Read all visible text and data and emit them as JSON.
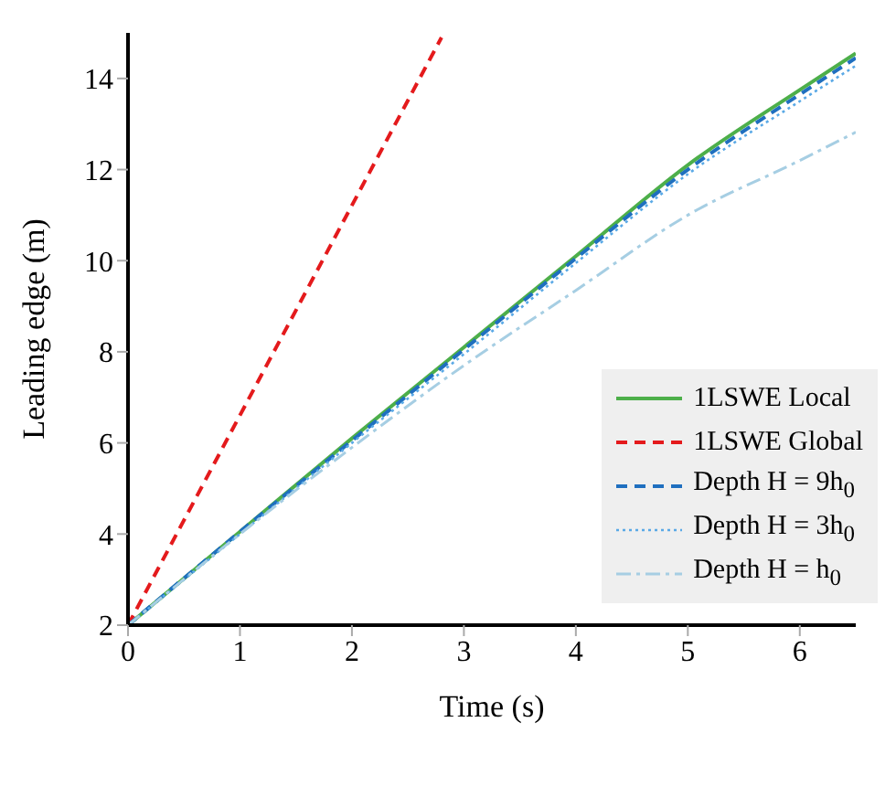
{
  "chart_data": {
    "type": "line",
    "xlabel": "Time (s)",
    "ylabel": "Leading edge (m)",
    "xlim": [
      0,
      6.5
    ],
    "ylim": [
      2,
      15
    ],
    "xticks": [
      0,
      1,
      2,
      3,
      4,
      5,
      6
    ],
    "yticks": [
      2,
      4,
      6,
      8,
      10,
      12,
      14
    ],
    "grid": false,
    "legend": "bottom right",
    "marker": "none",
    "series": [
      {
        "name": "1LSWE Local",
        "color": "#4daf4a",
        "line_style": "solid",
        "x": [
          0,
          1,
          2,
          3,
          4,
          5,
          6,
          6.5
        ],
        "values": [
          2,
          4.05,
          6.1,
          8.1,
          10.1,
          12.1,
          13.75,
          14.55
        ]
      },
      {
        "name": "1LSWE Global",
        "color": "#e41a1c",
        "line_style": "dashed",
        "x": [
          0,
          2.8
        ],
        "values": [
          2,
          14.9
        ]
      },
      {
        "name": "Depth H = 9h$_{0}$",
        "color": "#1f6fbf",
        "line_style": "dashed",
        "x": [
          0,
          1,
          2,
          3,
          4,
          5,
          6,
          6.5
        ],
        "values": [
          2,
          4.05,
          6.05,
          8.05,
          10.05,
          12.0,
          13.65,
          14.45
        ]
      },
      {
        "name": "Depth H = 3h$_{0}$",
        "color": "#5aa9e6",
        "line_style": "dotted",
        "x": [
          0,
          1,
          2,
          3,
          4,
          5,
          6,
          6.5
        ],
        "values": [
          2,
          4.0,
          6.0,
          7.95,
          9.95,
          11.9,
          13.5,
          14.28
        ]
      },
      {
        "name": "Depth H = h$_{0}$",
        "color": "#a6cee3",
        "line_style": "dashdot",
        "x": [
          0,
          1,
          2,
          3,
          4,
          5,
          6,
          6.5
        ],
        "values": [
          2,
          4.0,
          5.9,
          7.7,
          9.35,
          11.0,
          12.2,
          12.82
        ]
      }
    ]
  }
}
